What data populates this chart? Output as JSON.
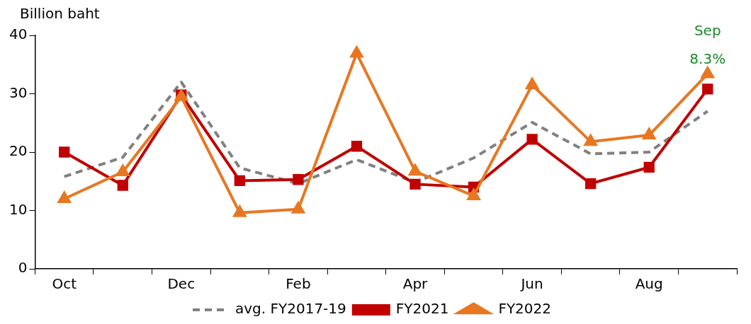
{
  "chart_data": {
    "type": "line",
    "ylabel": "Billion baht",
    "categories": [
      "Oct",
      null,
      "Dec",
      null,
      "Feb",
      null,
      "Apr",
      null,
      "Jun",
      null,
      "Aug",
      null
    ],
    "series": [
      {
        "name": "avg. FY2017-19",
        "color": "#808080",
        "line_style": "dashed",
        "marker": "none",
        "values": [
          15.8,
          19.1,
          32,
          17.3,
          14.6,
          18.7,
          14.8,
          19,
          25.1,
          19.7,
          20,
          27
        ]
      },
      {
        "name": "FY2021",
        "color": "#c00000",
        "line_style": "solid",
        "marker": "square",
        "values": [
          20,
          14.3,
          29.8,
          15.1,
          15.3,
          21,
          14.5,
          14,
          22.2,
          14.6,
          17.4,
          30.8
        ]
      },
      {
        "name": "FY2022",
        "color": "#e87722",
        "line_style": "solid",
        "marker": "triangle",
        "values": [
          12,
          16.6,
          29.5,
          9.6,
          10.2,
          36.9,
          16.7,
          12.5,
          31.5,
          21.8,
          22.9,
          33.4
        ]
      }
    ],
    "ylim": [
      0,
      40
    ],
    "yticks": [
      0,
      10,
      20,
      30,
      40
    ],
    "grid": false,
    "legend": "bottom",
    "annotations": [
      "Sep",
      "8.3%"
    ]
  }
}
